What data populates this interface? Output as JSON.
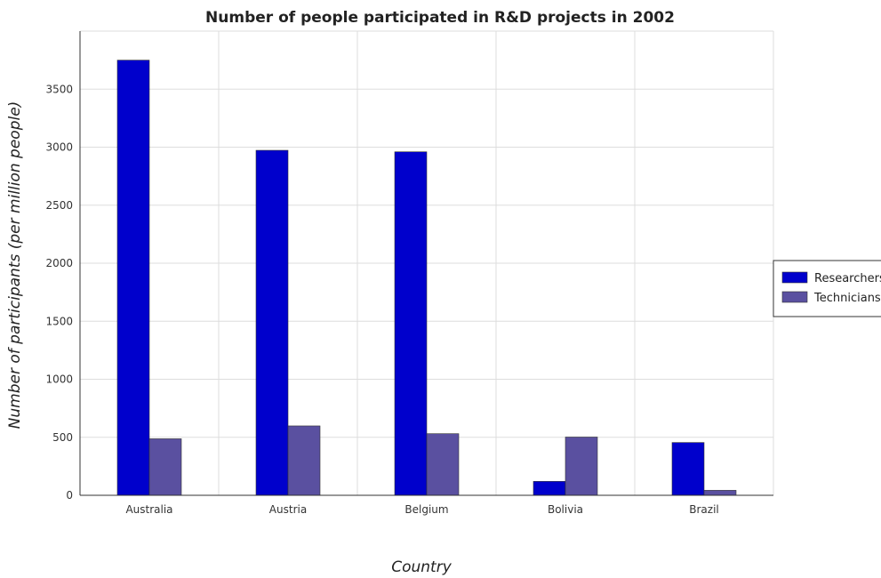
{
  "chart_data": {
    "type": "bar",
    "title": "Number of people participated in R&D projects in 2002",
    "xlabel": "Country",
    "ylabel": "Number of participants (per million people)",
    "categories": [
      "Australia",
      "Austria",
      "Belgium",
      "Bolivia",
      "Brazil"
    ],
    "series": [
      {
        "name": "Researchers",
        "color": "#0000cc",
        "values": [
          3750,
          2973,
          2960,
          120,
          455
        ]
      },
      {
        "name": "Technicians",
        "color": "#5a50a0",
        "values": [
          487,
          598,
          531,
          502,
          43
        ]
      }
    ],
    "ylim": [
      0,
      4000
    ],
    "yticks": [
      0,
      500,
      1000,
      1500,
      2000,
      2500,
      3000,
      3500
    ],
    "grid": true,
    "legend_position": "right"
  }
}
